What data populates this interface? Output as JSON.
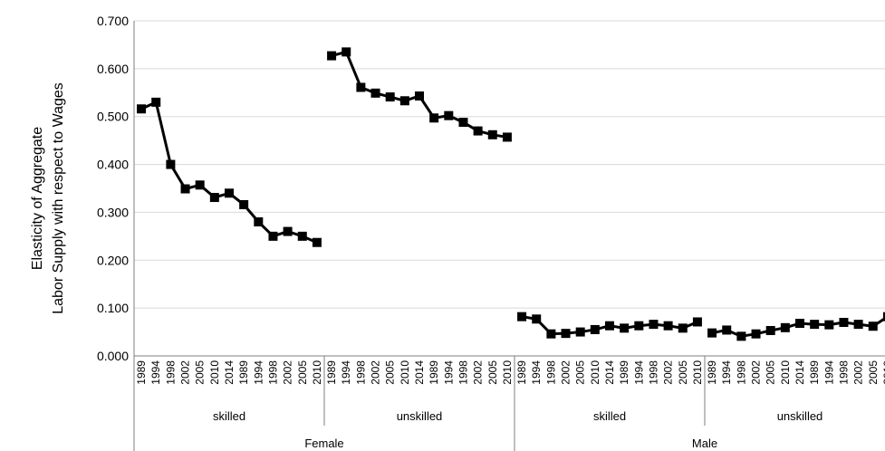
{
  "chart_data": {
    "type": "line",
    "ylabel_lines": [
      "Elasticity of Aggregate",
      "Labor Supply with respect to Wages"
    ],
    "ylim": [
      0,
      0.7
    ],
    "yticks": [
      "0.000",
      "0.100",
      "0.200",
      "0.300",
      "0.400",
      "0.500",
      "0.600",
      "0.700"
    ],
    "grid": true,
    "x_ticks": [
      "1989",
      "1994",
      "1998",
      "2002",
      "2005",
      "2010",
      "2014"
    ],
    "groups": [
      {
        "gender": "Female",
        "subgroups": [
          {
            "name": "skilled",
            "values": [
              0.516,
              0.53,
              0.4,
              0.349,
              0.357,
              0.331,
              0.34,
              0.316,
              0.28,
              0.25,
              0.26,
              0.25,
              0.237
            ]
          },
          {
            "name": "unskilled",
            "values": [
              0.627,
              0.635,
              0.561,
              0.549,
              0.541,
              0.533,
              0.543,
              0.497,
              0.502,
              0.488,
              0.47,
              0.462,
              0.457
            ]
          }
        ]
      },
      {
        "gender": "Male",
        "subgroups": [
          {
            "name": "skilled",
            "values": [
              0.082,
              0.077,
              0.046,
              0.047,
              0.05,
              0.055,
              0.063,
              0.058,
              0.063,
              0.066,
              0.063,
              0.058,
              0.071
            ]
          },
          {
            "name": "unskilled",
            "values": [
              0.048,
              0.054,
              0.041,
              0.046,
              0.053,
              0.059,
              0.068,
              0.066,
              0.065,
              0.07,
              0.066,
              0.062,
              0.082
            ]
          }
        ]
      }
    ]
  }
}
